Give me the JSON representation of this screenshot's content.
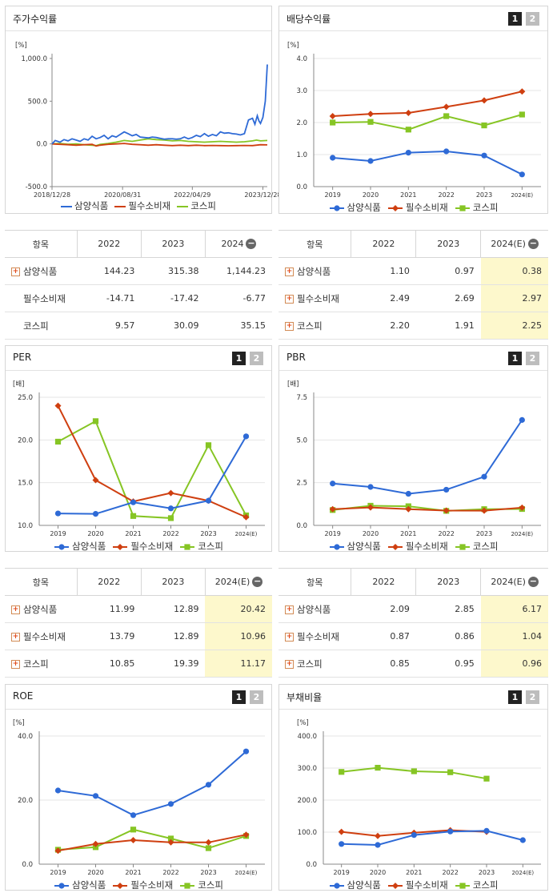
{
  "common": {
    "legend": [
      "삼양식품",
      "필수소비재",
      "코스피"
    ],
    "colors": [
      "#2e6ad6",
      "#cf3f10",
      "#86c524"
    ],
    "marker_shapes": [
      "circle",
      "diamond",
      "square"
    ],
    "buttons": [
      "1",
      "2"
    ]
  },
  "charts": {
    "stock": {
      "title": "주가수익률",
      "unit": "[%]",
      "yticks": [
        "1,000.0",
        "500.0",
        "0.0",
        "-500.0"
      ],
      "xticks": [
        "2018/12/28",
        "2020/08/31",
        "2022/04/29",
        "2023/12/28"
      ]
    },
    "dividend": {
      "title": "배당수익률",
      "unit": "[%]",
      "yticks": [
        "4.0",
        "3.0",
        "2.0",
        "1.0",
        "0.0"
      ],
      "xticks": [
        "2019",
        "2020",
        "2021",
        "2022",
        "2023",
        "2024(E)"
      ]
    },
    "per": {
      "title": "PER",
      "unit": "[배]",
      "yticks": [
        "25.0",
        "20.0",
        "15.0",
        "10.0"
      ],
      "xticks": [
        "2019",
        "2020",
        "2021",
        "2022",
        "2023",
        "2024(E)"
      ]
    },
    "pbr": {
      "title": "PBR",
      "unit": "[배]",
      "yticks": [
        "7.5",
        "5.0",
        "2.5",
        "0.0"
      ],
      "xticks": [
        "2019",
        "2020",
        "2021",
        "2022",
        "2023",
        "2024(E)"
      ]
    },
    "roe": {
      "title": "ROE",
      "unit": "[%]",
      "yticks": [
        "40.0",
        "20.0",
        "0.0"
      ],
      "xticks": [
        "2019",
        "2020",
        "2021",
        "2022",
        "2023",
        "2024(E)"
      ]
    },
    "debt": {
      "title": "부채비율",
      "unit": "[%]",
      "yticks": [
        "400.0",
        "300.0",
        "200.0",
        "100.0",
        "0.0"
      ],
      "xticks": [
        "2019",
        "2020",
        "2021",
        "2022",
        "2023",
        "2024(E)"
      ]
    }
  },
  "tables": {
    "stock": {
      "headers": [
        "항목",
        "2022",
        "2023",
        "2024"
      ],
      "rows": [
        {
          "label": "삼양식품",
          "values": [
            "144.23",
            "315.38",
            "1,144.23"
          ]
        },
        {
          "label": "필수소비재",
          "values": [
            "-14.71",
            "-17.42",
            "-6.77"
          ]
        },
        {
          "label": "코스피",
          "values": [
            "9.57",
            "30.09",
            "35.15"
          ]
        }
      ]
    },
    "dividend": {
      "headers": [
        "항목",
        "2022",
        "2023",
        "2024(E)"
      ],
      "rows": [
        {
          "label": "삼양식품",
          "values": [
            "1.10",
            "0.97",
            "0.38"
          ]
        },
        {
          "label": "필수소비재",
          "values": [
            "2.49",
            "2.69",
            "2.97"
          ]
        },
        {
          "label": "코스피",
          "values": [
            "2.20",
            "1.91",
            "2.25"
          ]
        }
      ]
    },
    "per": {
      "headers": [
        "항목",
        "2022",
        "2023",
        "2024(E)"
      ],
      "rows": [
        {
          "label": "삼양식품",
          "values": [
            "11.99",
            "12.89",
            "20.42"
          ]
        },
        {
          "label": "필수소비재",
          "values": [
            "13.79",
            "12.89",
            "10.96"
          ]
        },
        {
          "label": "코스피",
          "values": [
            "10.85",
            "19.39",
            "11.17"
          ]
        }
      ]
    },
    "pbr": {
      "headers": [
        "항목",
        "2022",
        "2023",
        "2024(E)"
      ],
      "rows": [
        {
          "label": "삼양식품",
          "values": [
            "2.09",
            "2.85",
            "6.17"
          ]
        },
        {
          "label": "필수소비재",
          "values": [
            "0.87",
            "0.86",
            "1.04"
          ]
        },
        {
          "label": "코스피",
          "values": [
            "0.85",
            "0.95",
            "0.96"
          ]
        }
      ]
    }
  },
  "chart_data": [
    {
      "id": "stock",
      "type": "line",
      "title": "주가수익률",
      "ylabel": "[%]",
      "ylim": [
        -500,
        1000
      ],
      "xlim": [
        "2018/12/28",
        "2023/12/28"
      ],
      "grid": false,
      "legend": "bottom",
      "series": [
        {
          "name": "삼양식품",
          "x": [
            0,
            0.4,
            1,
            1.5,
            2,
            2.5,
            3,
            3.5,
            4,
            4.5,
            5,
            5.5,
            6,
            6.5,
            7,
            7.5,
            8,
            8.5,
            9,
            9.5,
            10,
            10.5,
            11,
            11.5,
            12,
            12.5,
            13,
            13.5,
            14,
            14.5,
            15,
            15.5,
            16,
            16.5,
            17,
            17.5,
            18,
            18.5,
            19,
            19.5,
            20,
            20.5,
            21,
            21.5,
            22,
            22.5,
            23,
            23.5,
            24,
            24.5,
            25,
            25.3,
            25.6,
            25.8,
            26,
            26.3,
            26.6,
            26.85
          ],
          "values": [
            0,
            40,
            20,
            50,
            35,
            60,
            45,
            30,
            60,
            45,
            90,
            60,
            75,
            100,
            60,
            95,
            80,
            110,
            140,
            120,
            95,
            110,
            80,
            75,
            70,
            80,
            75,
            65,
            55,
            60,
            60,
            55,
            60,
            80,
            60,
            75,
            100,
            85,
            120,
            90,
            110,
            95,
            140,
            125,
            130,
            120,
            115,
            105,
            120,
            280,
            300,
            230,
            330,
            270,
            240,
            310,
            500,
            930
          ]
        },
        {
          "name": "필수소비재",
          "x": [
            0,
            1,
            2,
            3,
            4,
            5,
            5.5,
            6,
            7,
            8,
            9,
            10,
            11,
            12,
            13,
            14,
            15,
            16,
            17,
            18,
            19,
            20,
            21,
            22,
            23,
            24,
            25,
            26,
            26.85
          ],
          "values": [
            0,
            -5,
            -10,
            -15,
            -10,
            -5,
            -25,
            -15,
            -5,
            0,
            5,
            -5,
            -10,
            -15,
            -10,
            -15,
            -20,
            -15,
            -20,
            -15,
            -20,
            -18,
            -20,
            -22,
            -20,
            -18,
            -20,
            -10,
            -12
          ]
        },
        {
          "name": "코스피",
          "x": [
            0,
            1,
            2,
            3,
            4,
            5,
            5.5,
            6,
            7,
            8,
            9,
            10,
            11,
            12,
            13,
            14,
            15,
            16,
            17,
            18,
            19,
            20,
            21,
            22,
            23,
            24,
            25,
            25.5,
            26,
            26.85
          ],
          "values": [
            0,
            5,
            -5,
            0,
            -10,
            -15,
            -20,
            -5,
            5,
            20,
            40,
            30,
            45,
            60,
            50,
            45,
            35,
            40,
            30,
            25,
            20,
            25,
            30,
            25,
            20,
            25,
            35,
            45,
            35,
            40
          ]
        }
      ]
    },
    {
      "id": "dividend",
      "type": "line",
      "title": "배당수익률",
      "ylabel": "[%]",
      "ylim": [
        0,
        4
      ],
      "categories": [
        "2019",
        "2020",
        "2021",
        "2022",
        "2023",
        "2024(E)"
      ],
      "grid": true,
      "legend": "bottom",
      "series": [
        {
          "name": "삼양식품",
          "values": [
            0.9,
            0.8,
            1.06,
            1.1,
            0.97,
            0.38
          ]
        },
        {
          "name": "필수소비재",
          "values": [
            2.2,
            2.27,
            2.3,
            2.49,
            2.69,
            2.97
          ]
        },
        {
          "name": "코스피",
          "values": [
            2.0,
            2.02,
            1.78,
            2.2,
            1.91,
            2.25
          ]
        }
      ]
    },
    {
      "id": "per",
      "type": "line",
      "title": "PER",
      "ylabel": "[배]",
      "ylim": [
        10,
        25
      ],
      "categories": [
        "2019",
        "2020",
        "2021",
        "2022",
        "2023",
        "2024(E)"
      ],
      "grid": true,
      "legend": "bottom",
      "series": [
        {
          "name": "삼양식품",
          "values": [
            11.4,
            11.35,
            12.7,
            11.99,
            12.89,
            20.42
          ]
        },
        {
          "name": "필수소비재",
          "values": [
            24.0,
            15.3,
            12.8,
            13.79,
            12.89,
            10.96
          ]
        },
        {
          "name": "코스피",
          "values": [
            19.8,
            22.2,
            11.1,
            10.85,
            19.39,
            11.17
          ]
        }
      ]
    },
    {
      "id": "pbr",
      "type": "line",
      "title": "PBR",
      "ylabel": "[배]",
      "ylim": [
        0,
        7.5
      ],
      "categories": [
        "2019",
        "2020",
        "2021",
        "2022",
        "2023",
        "2024(E)"
      ],
      "grid": true,
      "legend": "bottom",
      "series": [
        {
          "name": "삼양식품",
          "values": [
            2.45,
            2.25,
            1.85,
            2.09,
            2.85,
            6.17
          ]
        },
        {
          "name": "필수소비재",
          "values": [
            0.95,
            1.05,
            0.95,
            0.87,
            0.86,
            1.04
          ]
        },
        {
          "name": "코스피",
          "values": [
            0.9,
            1.15,
            1.12,
            0.85,
            0.95,
            0.96
          ]
        }
      ]
    },
    {
      "id": "roe",
      "type": "line",
      "title": "ROE",
      "ylabel": "[%]",
      "ylim": [
        0,
        40
      ],
      "categories": [
        "2019",
        "2020",
        "2021",
        "2022",
        "2023",
        "2024(E)"
      ],
      "grid": true,
      "legend": "bottom",
      "series": [
        {
          "name": "삼양식품",
          "values": [
            23.0,
            21.3,
            15.3,
            18.8,
            24.8,
            35.2
          ]
        },
        {
          "name": "필수소비재",
          "values": [
            4.2,
            6.3,
            7.5,
            6.8,
            6.8,
            9.2
          ]
        },
        {
          "name": "코스피",
          "values": [
            4.5,
            5.3,
            10.8,
            8.0,
            5.0,
            8.8
          ]
        }
      ]
    },
    {
      "id": "debt",
      "type": "line",
      "title": "부채비율",
      "ylabel": "[%]",
      "ylim": [
        0,
        400
      ],
      "categories": [
        "2019",
        "2020",
        "2021",
        "2022",
        "2023",
        "2024(E)"
      ],
      "grid": true,
      "legend": "bottom",
      "series": [
        {
          "name": "삼양식품",
          "values": [
            63,
            60,
            91,
            102,
            104,
            75
          ]
        },
        {
          "name": "필수소비재",
          "values": [
            101,
            88,
            98,
            106,
            101,
            null
          ]
        },
        {
          "name": "코스피",
          "values": [
            288,
            301,
            290,
            287,
            267,
            null
          ]
        }
      ]
    }
  ]
}
